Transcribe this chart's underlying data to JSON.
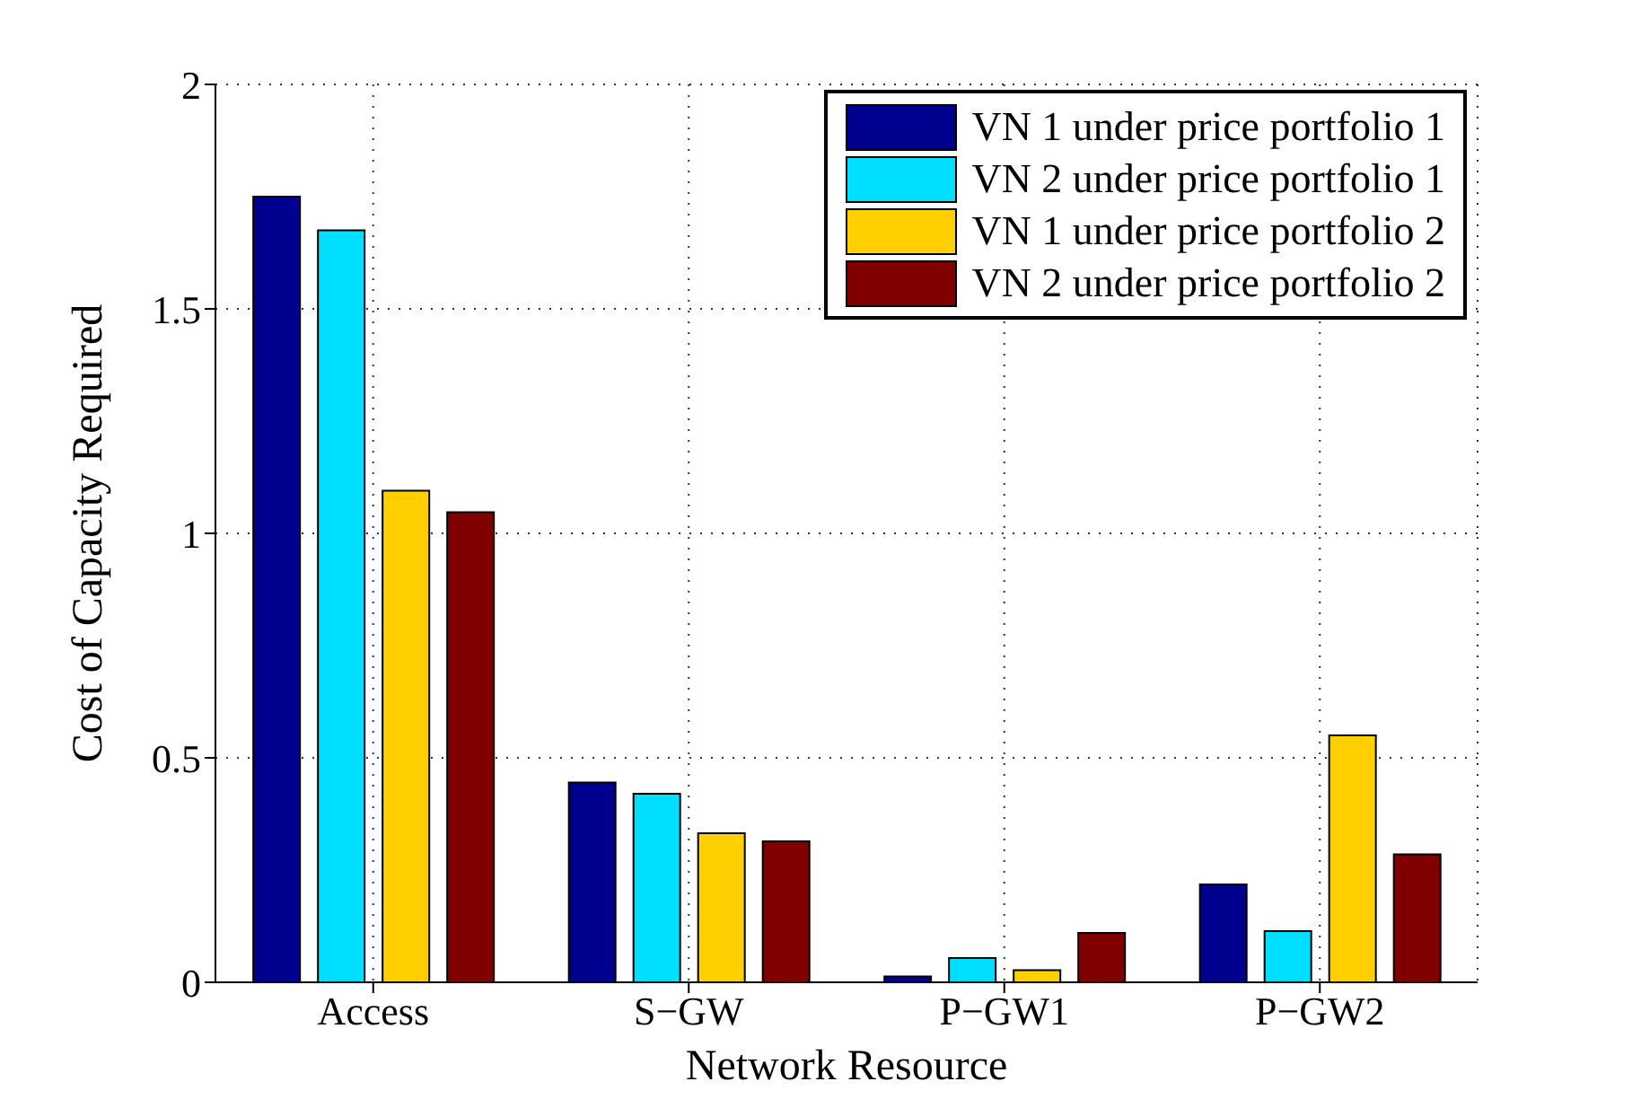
{
  "chart_data": {
    "type": "bar",
    "xlabel": "Network Resource",
    "ylabel": "Cost of  Capacity Required",
    "categories": [
      "Access",
      "S−GW",
      "P−GW1",
      "P−GW2"
    ],
    "series": [
      {
        "name": "VN 1 under price portfolio 1",
        "color": "#00008f",
        "values": [
          1.75,
          0.445,
          0.013,
          0.218
        ]
      },
      {
        "name": "VN 2 under price portfolio 1",
        "color": "#00dfff",
        "values": [
          1.675,
          0.42,
          0.054,
          0.114
        ]
      },
      {
        "name": "VN 1 under price portfolio 2",
        "color": "#ffcf00",
        "values": [
          1.095,
          0.332,
          0.027,
          0.55
        ]
      },
      {
        "name": "VN 2 under price portfolio 2",
        "color": "#800000",
        "values": [
          1.047,
          0.314,
          0.11,
          0.285
        ]
      }
    ],
    "ylim": [
      0,
      2
    ],
    "yticks": [
      0,
      0.5,
      1,
      1.5,
      2
    ],
    "grid": true,
    "legend": "top right"
  }
}
